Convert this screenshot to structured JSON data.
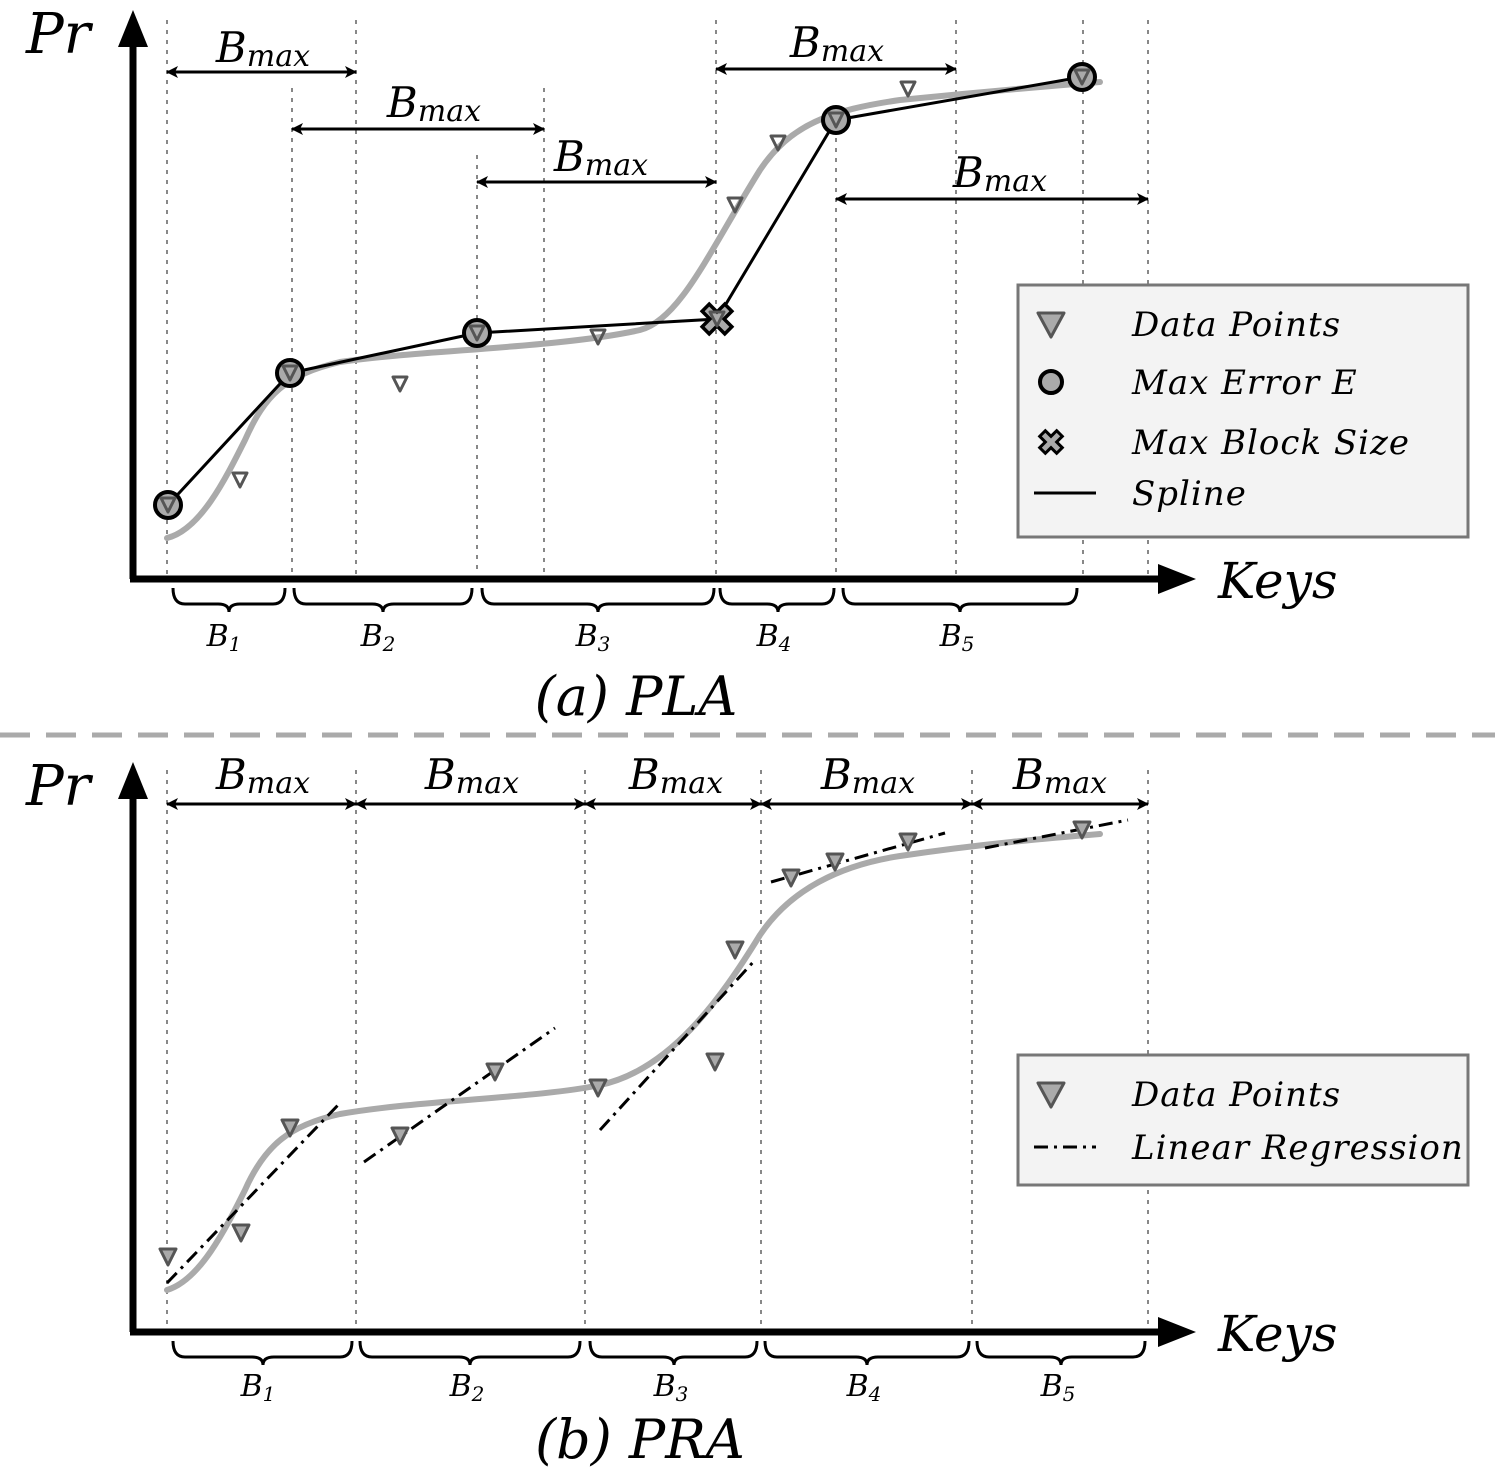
{
  "panels": [
    {
      "id": "pla",
      "caption": "(a) PLA",
      "y_axis_label": "Pr",
      "x_axis_label": "Keys",
      "window_label": "B",
      "window_label_sub": "max",
      "block_labels": [
        "B",
        "B",
        "B",
        "B",
        "B"
      ],
      "block_label_subs": [
        "1",
        "2",
        "3",
        "4",
        "5"
      ],
      "legend": [
        {
          "symbol": "triangle",
          "label": "Data Points"
        },
        {
          "symbol": "circle",
          "label": "Max Error E"
        },
        {
          "symbol": "cross",
          "label": "Max Block Size"
        },
        {
          "symbol": "solid-line",
          "label": "Spline"
        }
      ]
    },
    {
      "id": "pra",
      "caption": "(b) PRA",
      "y_axis_label": "Pr",
      "x_axis_label": "Keys",
      "window_label": "B",
      "window_label_sub": "max",
      "block_labels": [
        "B",
        "B",
        "B",
        "B",
        "B"
      ],
      "block_label_subs": [
        "1",
        "2",
        "3",
        "4",
        "5"
      ],
      "legend": [
        {
          "symbol": "triangle",
          "label": "Data Points"
        },
        {
          "symbol": "dashdot-line",
          "label": "Linear Regression"
        }
      ]
    }
  ],
  "colors": {
    "ink": "#000000",
    "spline_curve": "#aaaaaa",
    "marker_fill": "#aaaaaa",
    "marker_stroke": "#555555",
    "guide_lines": "#888888",
    "legend_background": "#f3f3f3",
    "legend_border": "#777777",
    "separator": "#aaaaaa"
  }
}
